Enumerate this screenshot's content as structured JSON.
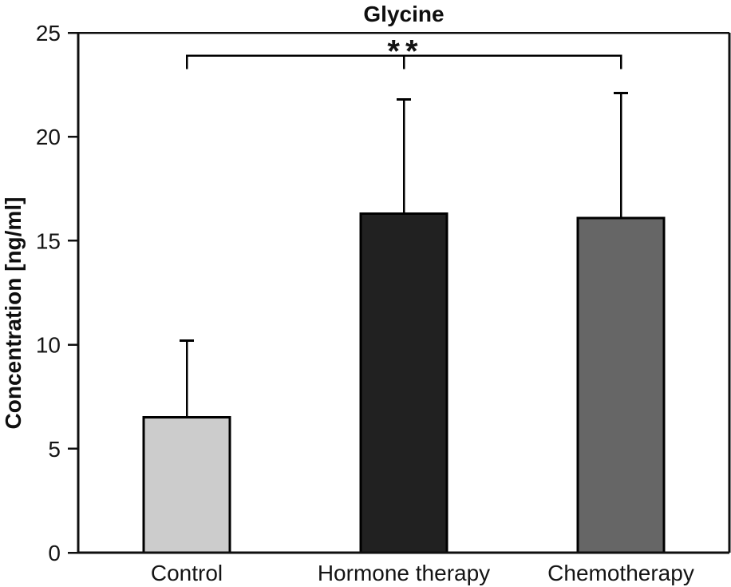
{
  "figure": {
    "title": "Glycine",
    "ylabel": "Concentration [ng/ml]"
  },
  "chart_data": {
    "type": "bar",
    "title": "Glycine",
    "xlabel": "",
    "ylabel": "Concentration [ng/ml]",
    "categories": [
      "Control",
      "Hormone therapy",
      "Chemotherapy"
    ],
    "values": [
      6.5,
      16.3,
      16.1
    ],
    "error_upper": [
      3.7,
      5.5,
      6.0
    ],
    "bar_colors": [
      "#cccccc",
      "#212121",
      "#666666"
    ],
    "bar_border_color": "#000000",
    "axis_color": "#0f0f0f",
    "ylim": [
      0,
      25
    ],
    "yticks": [
      0,
      5,
      10,
      15,
      20,
      25
    ],
    "grid": false,
    "legend": "none",
    "frame": "full-box",
    "annotations": [
      {
        "type": "significance-bracket",
        "label": "**",
        "from_category": "Control",
        "mid_category": "Hormone therapy",
        "to_category": "Chemotherapy",
        "y_value": 23.9
      }
    ]
  }
}
